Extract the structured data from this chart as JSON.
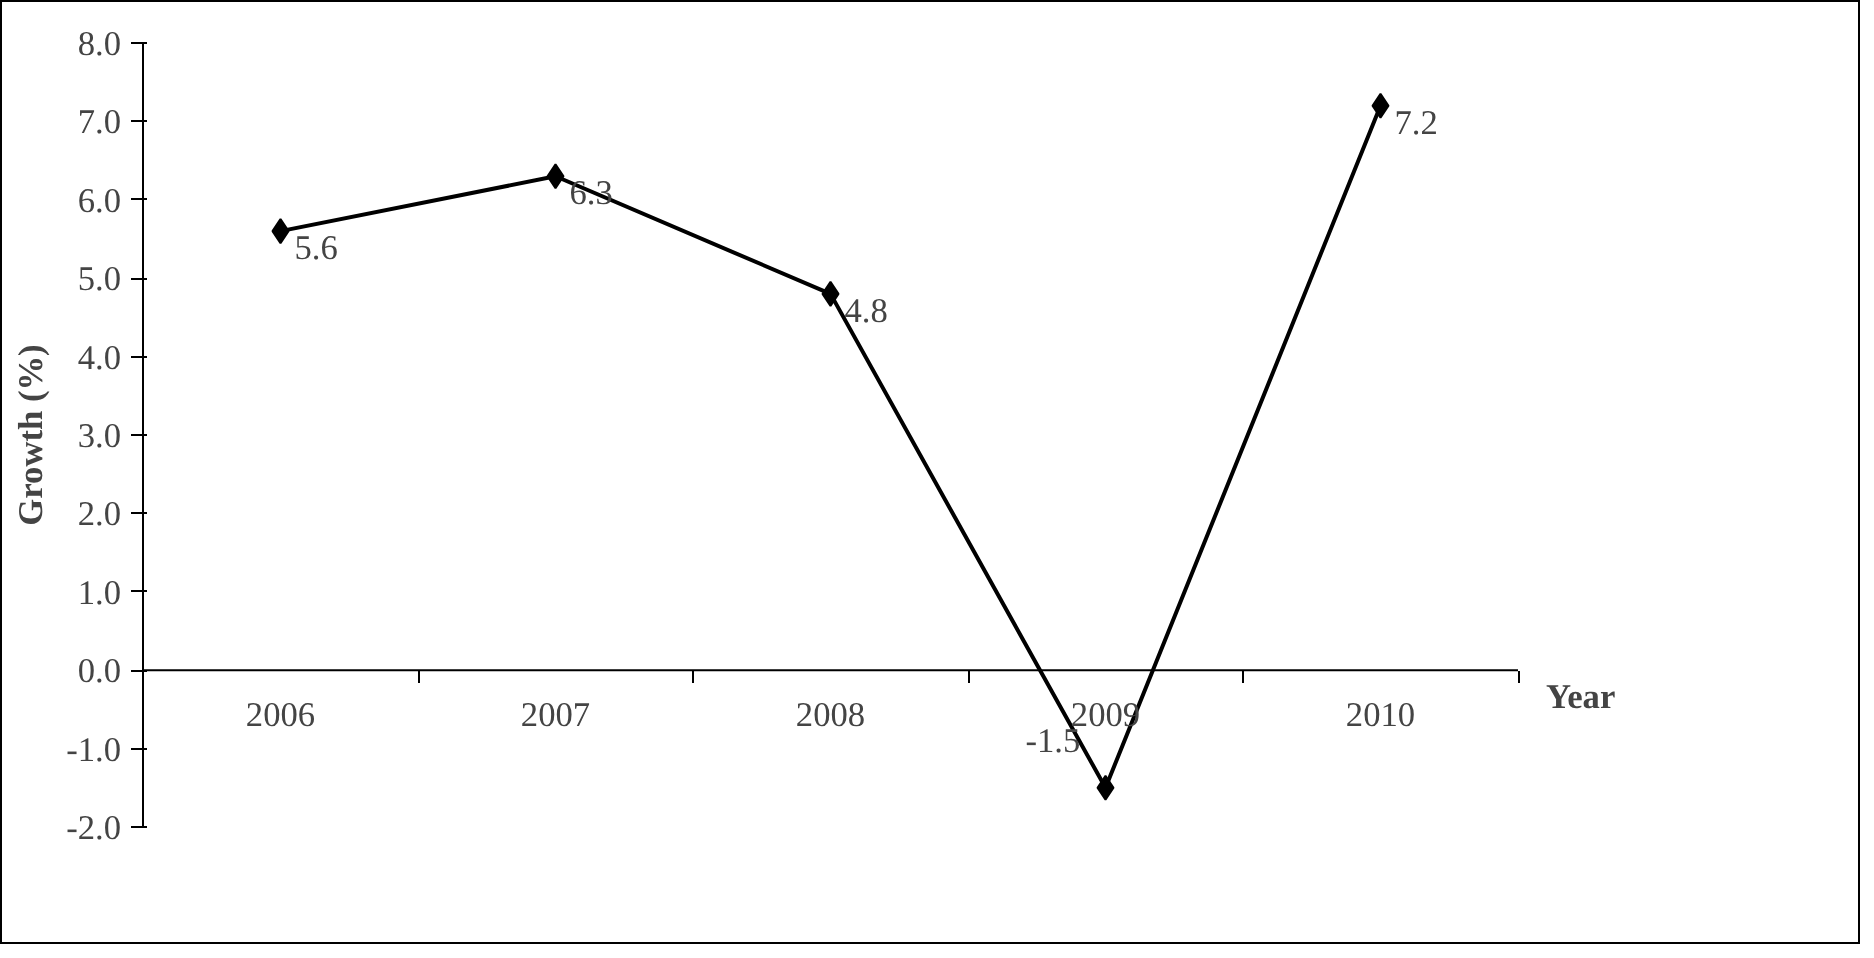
{
  "chart_data": {
    "type": "line",
    "xlabel": "Year",
    "ylabel": "Growth (%)",
    "categories": [
      "2006",
      "2007",
      "2008",
      "2009",
      "2010"
    ],
    "series": [
      {
        "color": "#000000",
        "values": [
          5.6,
          6.3,
          4.8,
          -1.5,
          7.2
        ]
      }
    ],
    "ylim": [
      -2,
      8
    ],
    "yticks": [
      {
        "value": -2,
        "label": "-2.0"
      },
      {
        "value": -1,
        "label": "-1.0"
      },
      {
        "value": 0,
        "label": "0.0"
      },
      {
        "value": 1,
        "label": "1.0"
      },
      {
        "value": 2,
        "label": "2.0"
      },
      {
        "value": 3,
        "label": "3.0"
      },
      {
        "value": 4,
        "label": "4.0"
      },
      {
        "value": 5,
        "label": "5.0"
      },
      {
        "value": 6,
        "label": "6.0"
      },
      {
        "value": 7,
        "label": "7.0"
      },
      {
        "value": 8,
        "label": "8.0"
      }
    ],
    "marker": "diamond",
    "data_labels": true,
    "grid": false
  }
}
